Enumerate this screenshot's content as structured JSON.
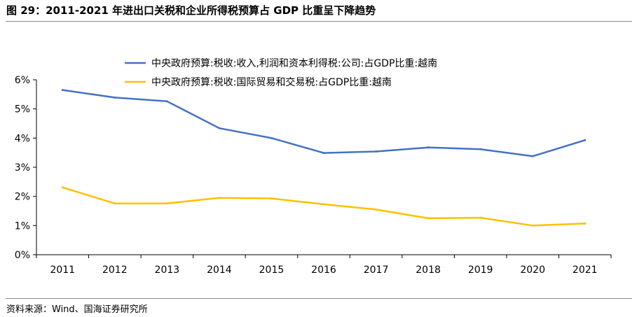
{
  "header": {
    "title": "图 29：2011-2021 年进出口关税和企业所得税预算占 GDP 比重呈下降趋势"
  },
  "footer": {
    "source": "资料来源：Wind、国海证券研究所"
  },
  "chart_data": {
    "type": "line",
    "title": "",
    "xlabel": "",
    "ylabel": "",
    "categories": [
      "2011",
      "2012",
      "2013",
      "2014",
      "2015",
      "2016",
      "2017",
      "2018",
      "2019",
      "2020",
      "2021"
    ],
    "ylim": [
      0,
      6
    ],
    "yticks": [
      0,
      1,
      2,
      3,
      4,
      5,
      6
    ],
    "ytick_labels": [
      "0%",
      "1%",
      "2%",
      "3%",
      "4%",
      "5%",
      "6%"
    ],
    "grid": false,
    "legend_position": "top-center",
    "series": [
      {
        "name": "中央政府预算:税收:收入,利润和资本利得税:公司:占GDP比重:越南",
        "color": "#4472C4",
        "values": [
          5.65,
          5.39,
          5.26,
          4.34,
          4.0,
          3.49,
          3.54,
          3.68,
          3.62,
          3.38,
          3.93
        ]
      },
      {
        "name": "中央政府预算:税收:国际贸易和交易税:占GDP比重:越南",
        "color": "#FFC000",
        "values": [
          2.31,
          1.76,
          1.76,
          1.95,
          1.93,
          1.73,
          1.55,
          1.25,
          1.27,
          1.0,
          1.07
        ]
      }
    ]
  }
}
